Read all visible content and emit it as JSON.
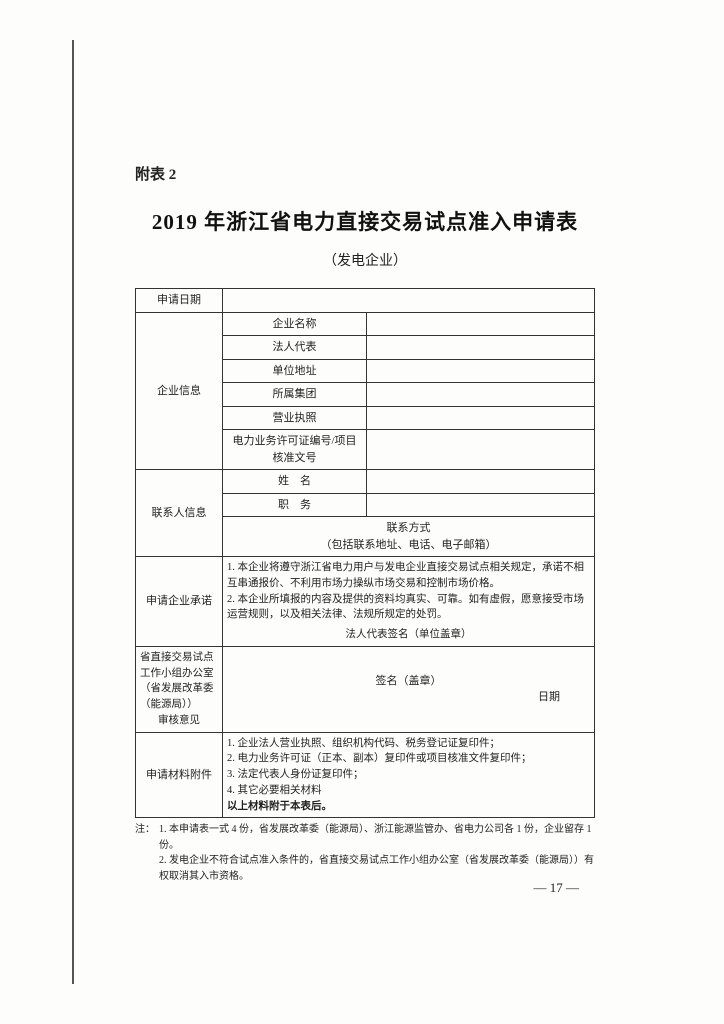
{
  "attachment_label": "附表 2",
  "title": "2019 年浙江省电力直接交易试点准入申请表",
  "subtitle": "（发电企业）",
  "rows": {
    "apply_date": "申请日期",
    "company_info": "企业信息",
    "company_name": "企业名称",
    "legal_rep": "法人代表",
    "address": "单位地址",
    "group": "所属集团",
    "license": "营业执照",
    "power_license": "电力业务许可证编号/项目核准文号",
    "contact_info": "联系人信息",
    "contact_name": "姓　名",
    "contact_title": "职　务",
    "contact_method": "联系方式",
    "contact_method_note": "（包括联系地址、电话、电子邮箱）",
    "commitment_label": "申请企业承诺",
    "commitment_1": "1.  本企业将遵守浙江省电力用户与发电企业直接交易试点相关规定，承诺不相互串通报价、不利用市场力操纵市场交易和控制市场价格。",
    "commitment_2": "2.  本企业所填报的内容及提供的资料均真实、可靠。如有虚假，愿意接受市场运营规则，以及相关法律、法规所规定的处罚。",
    "commitment_sig": "法人代表签名（单位盖章）",
    "review_label_1": "省直接交易试点",
    "review_label_2": "工作小组办公室",
    "review_label_3": "（省发展改革委",
    "review_label_4": "（能源局））",
    "review_label_5": "审核意见",
    "review_sig": "签名（盖章）",
    "review_date": "日期",
    "attachments_label": "申请材料附件",
    "attach_1": "1.  企业法人营业执照、组织机构代码、税务登记证复印件；",
    "attach_2": "2.  电力业务许可证（正本、副本）复印件或项目核准文件复印件；",
    "attach_3": "3.  法定代表人身份证复印件；",
    "attach_4": "4.  其它必要相关材料",
    "attach_bold": "以上材料附于本表后。"
  },
  "notes": {
    "prefix": "注：",
    "n1": "1.  本申请表一式 4 份，省发展改革委（能源局）、浙江能源监管办、省电力公司各 1 份，企业留存 1 份。",
    "n2": "2.  发电企业不符合试点准入条件的，省直接交易试点工作小组办公室（省发展改革委（能源局））有权取消其入市资格。"
  },
  "page_number": "— 17 —"
}
